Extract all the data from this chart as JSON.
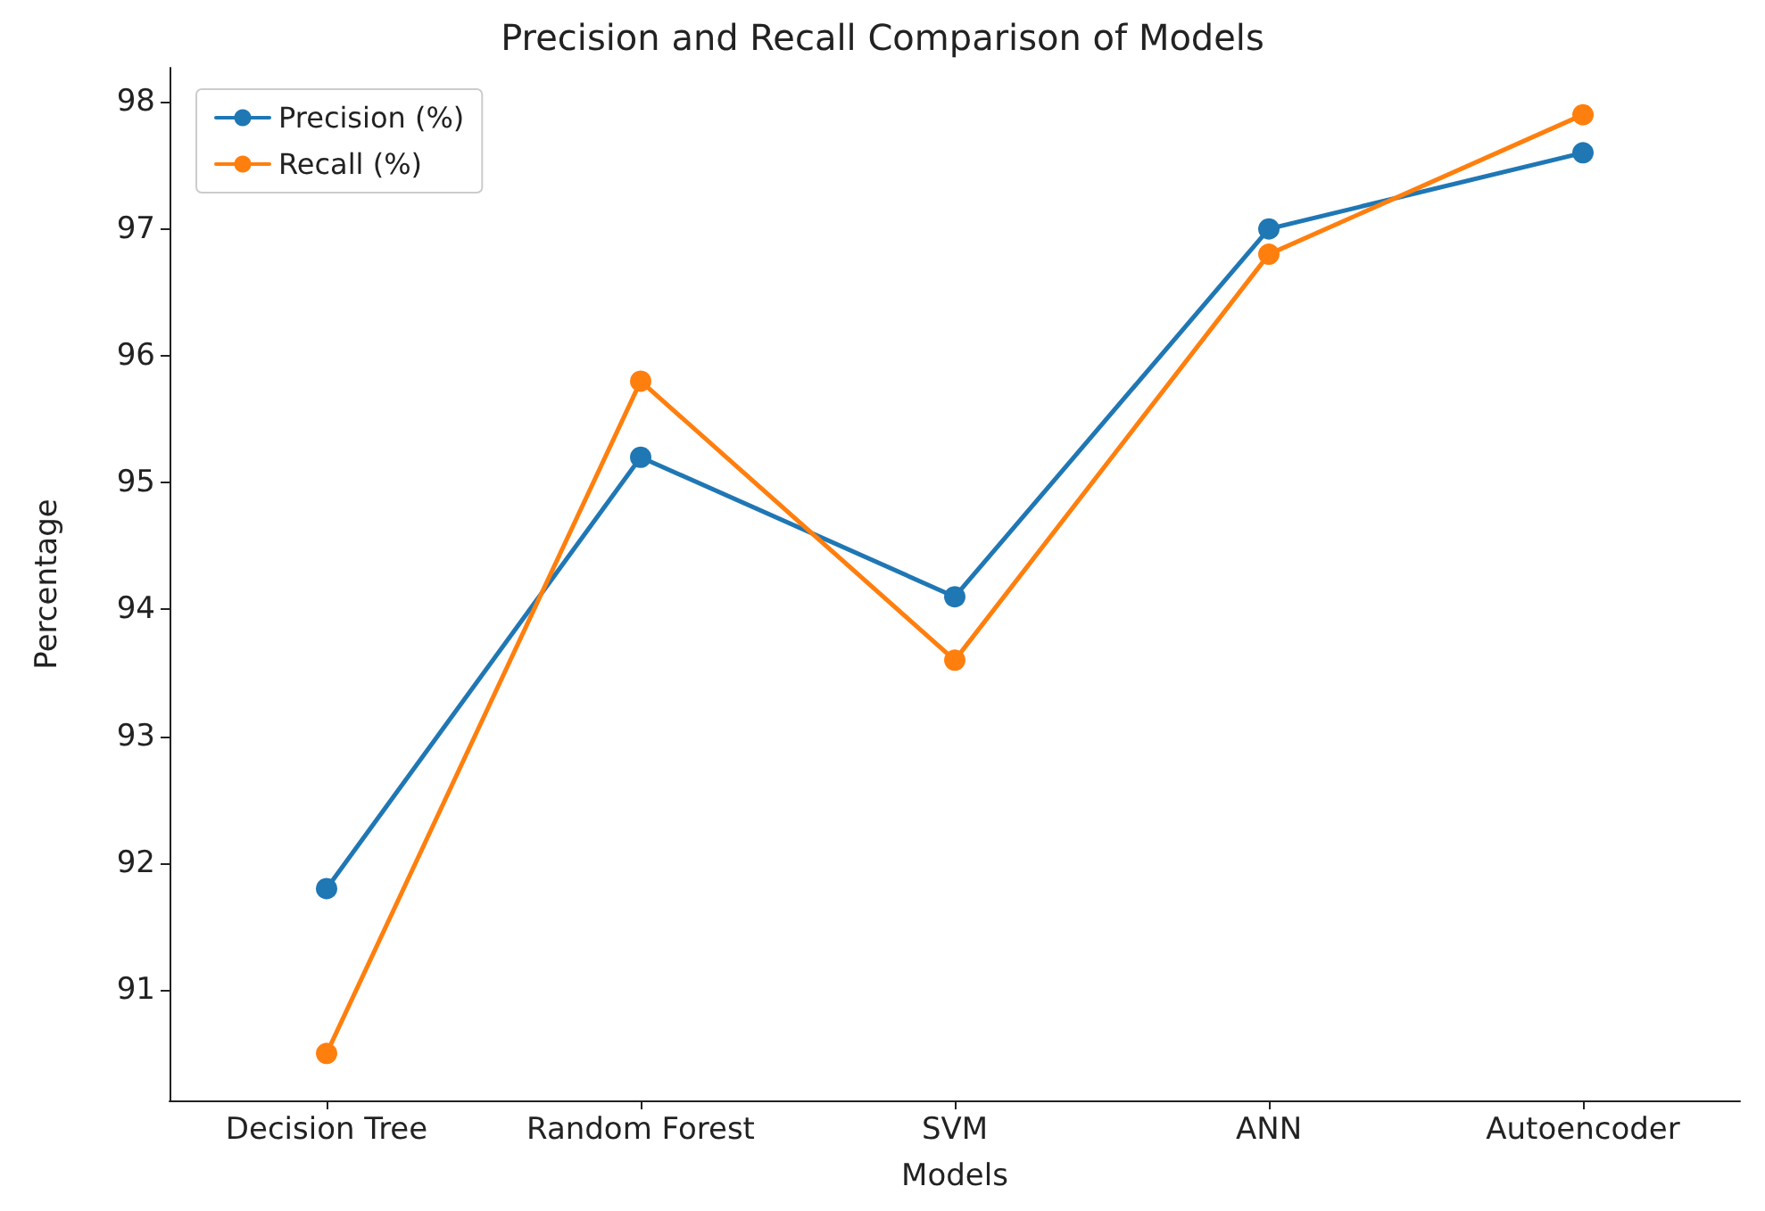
{
  "chart_data": {
    "type": "line",
    "title": "Precision and Recall Comparison of Models",
    "xlabel": "Models",
    "ylabel": "Percentage",
    "categories": [
      "Decision Tree",
      "Random Forest",
      "SVM",
      "ANN",
      "Autoencoder"
    ],
    "series": [
      {
        "name": "Precision (%)",
        "color": "#1f77b4",
        "values": [
          91.8,
          95.2,
          94.1,
          97.0,
          97.6
        ]
      },
      {
        "name": "Recall (%)",
        "color": "#ff7f0e",
        "values": [
          90.5,
          95.8,
          93.6,
          96.8,
          97.9
        ]
      }
    ],
    "ylim": [
      90.13,
      98.27
    ],
    "yticks": [
      91,
      92,
      93,
      94,
      95,
      96,
      97,
      98
    ],
    "grid": false,
    "legend": "top left",
    "marker": "circle",
    "line_style": "solid"
  }
}
